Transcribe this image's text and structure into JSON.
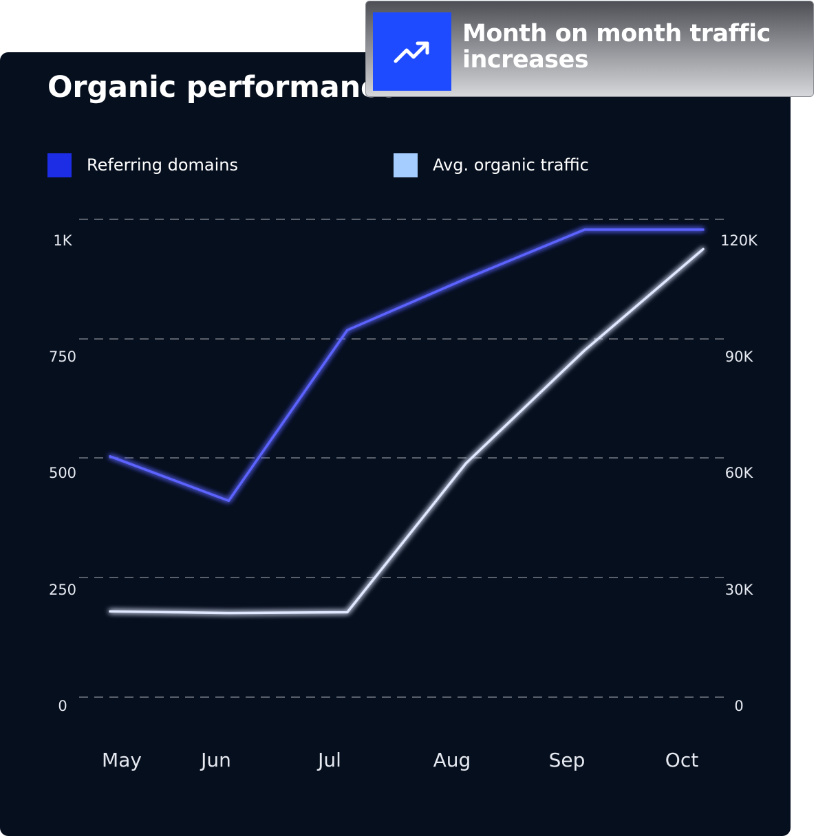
{
  "card": {
    "title": "Organic performance"
  },
  "callout": {
    "icon": "trending-up-icon",
    "text": "Month on month traffic increases"
  },
  "colors": {
    "background": "#060f1e",
    "referring_domains": "#5b63ff",
    "referring_domains_swatch": "#1d2de6",
    "organic_traffic": "#dfe8ff",
    "organic_traffic_swatch": "#a5cdff",
    "callout_icon_bg": "#1e4bff"
  },
  "chart_data": {
    "type": "line",
    "title": "Organic performance",
    "categories": [
      "May",
      "Jun",
      "Jul",
      "Aug",
      "Sep",
      "Oct"
    ],
    "legend_placement": "top",
    "grid": true,
    "y_left": {
      "ticks": [
        "0",
        "250",
        "500",
        "750",
        "1K"
      ],
      "lim": [
        0,
        1000
      ]
    },
    "y_right": {
      "ticks": [
        "0",
        "30K",
        "60K",
        "90K",
        "120K"
      ],
      "lim": [
        0,
        120000
      ]
    },
    "series": [
      {
        "name": "Referring domains",
        "axis": "left",
        "values": [
          515,
          420,
          785,
          895,
          1000,
          1000
        ]
      },
      {
        "name": "Avg. organic traffic",
        "axis": "right",
        "values": [
          22000,
          21600,
          21800,
          60000,
          89000,
          115000
        ]
      }
    ]
  }
}
